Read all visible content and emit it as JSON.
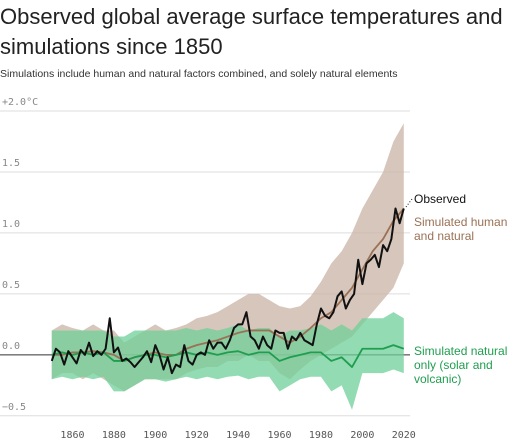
{
  "chart_data": {
    "type": "line",
    "title": "Observed global average surface temperatures and simulations since 1850",
    "subtitle": "Simulations include human and natural factors combined, and solely natural elements",
    "xlim": [
      1825,
      2023
    ],
    "ylim": [
      -0.6,
      2.0
    ],
    "xticks": [
      1860,
      1880,
      1900,
      1920,
      1940,
      1960,
      1980,
      2000,
      2020
    ],
    "yticks": [
      {
        "value": 2.0,
        "label": "+2.0°C"
      },
      1.5,
      {
        "value": 1.0,
        "label": "1.0"
      },
      0.5,
      {
        "value": 0,
        "label": "0.0"
      },
      {
        "value": -0.5,
        "label": "−0.5"
      }
    ],
    "grid": true,
    "series": [
      {
        "name": "Observed",
        "color": "#111111",
        "x": [
          1850,
          1852,
          1854,
          1856,
          1858,
          1860,
          1862,
          1864,
          1866,
          1868,
          1870,
          1872,
          1874,
          1876,
          1878,
          1880,
          1882,
          1884,
          1886,
          1888,
          1890,
          1892,
          1894,
          1896,
          1898,
          1900,
          1902,
          1904,
          1906,
          1908,
          1910,
          1912,
          1914,
          1916,
          1918,
          1920,
          1922,
          1924,
          1926,
          1928,
          1930,
          1932,
          1934,
          1936,
          1938,
          1940,
          1942,
          1944,
          1946,
          1948,
          1950,
          1952,
          1954,
          1956,
          1958,
          1960,
          1962,
          1964,
          1966,
          1968,
          1970,
          1972,
          1974,
          1976,
          1978,
          1980,
          1982,
          1984,
          1986,
          1988,
          1990,
          1992,
          1994,
          1996,
          1998,
          2000,
          2002,
          2004,
          2006,
          2008,
          2010,
          2012,
          2014,
          2016,
          2018,
          2020
        ],
        "values": [
          -0.05,
          0.05,
          0.02,
          -0.08,
          0.03,
          -0.02,
          -0.07,
          0.04,
          0,
          0.1,
          -0.01,
          0.03,
          0,
          0.05,
          0.3,
          0.02,
          0.06,
          -0.05,
          -0.03,
          -0.06,
          -0.1,
          -0.06,
          -0.02,
          0.03,
          -0.06,
          0.08,
          0,
          -0.12,
          -0.02,
          -0.15,
          -0.08,
          -0.1,
          0.08,
          -0.05,
          -0.08,
          0,
          0.02,
          0,
          0.12,
          0.05,
          0.1,
          0.1,
          0.05,
          0.12,
          0.22,
          0.25,
          0.25,
          0.35,
          0.15,
          0.12,
          0.05,
          0.15,
          0.08,
          0.05,
          0.2,
          0.18,
          0.18,
          0.05,
          0.15,
          0.12,
          0.18,
          0.12,
          0.1,
          0.08,
          0.25,
          0.38,
          0.32,
          0.3,
          0.35,
          0.48,
          0.52,
          0.38,
          0.45,
          0.5,
          0.78,
          0.58,
          0.75,
          0.78,
          0.82,
          0.72,
          0.9,
          0.85,
          0.95,
          1.2,
          1.08,
          1.2
        ]
      },
      {
        "name": "Simulated human and natural",
        "color": "#9b7155",
        "band_color": "#c9b3a4",
        "x": [
          1850,
          1855,
          1860,
          1865,
          1870,
          1875,
          1880,
          1885,
          1890,
          1895,
          1900,
          1905,
          1910,
          1915,
          1920,
          1925,
          1930,
          1935,
          1940,
          1945,
          1950,
          1955,
          1960,
          1965,
          1970,
          1975,
          1980,
          1985,
          1990,
          1995,
          2000,
          2005,
          2010,
          2015,
          2020
        ],
        "values": [
          0,
          0,
          0.02,
          0.02,
          0.03,
          0.02,
          0,
          -0.05,
          -0.02,
          0,
          0.02,
          0,
          0,
          0.05,
          0.08,
          0.1,
          0.12,
          0.15,
          0.18,
          0.2,
          0.2,
          0.2,
          0.15,
          0.1,
          0.15,
          0.22,
          0.3,
          0.35,
          0.45,
          0.55,
          0.7,
          0.85,
          0.95,
          1.1,
          1.2
        ],
        "high": [
          0.2,
          0.25,
          0.22,
          0.2,
          0.25,
          0.2,
          0.2,
          0.1,
          0.15,
          0.2,
          0.25,
          0.2,
          0.22,
          0.25,
          0.3,
          0.32,
          0.35,
          0.4,
          0.45,
          0.5,
          0.5,
          0.45,
          0.4,
          0.38,
          0.4,
          0.48,
          0.6,
          0.75,
          0.85,
          1.0,
          1.2,
          1.35,
          1.5,
          1.75,
          1.9
        ],
        "low": [
          -0.2,
          -0.15,
          -0.15,
          -0.2,
          -0.15,
          -0.2,
          -0.25,
          -0.3,
          -0.25,
          -0.2,
          -0.2,
          -0.2,
          -0.2,
          -0.15,
          -0.12,
          -0.1,
          -0.1,
          -0.05,
          -0.05,
          0,
          -0.05,
          -0.05,
          -0.15,
          -0.2,
          -0.12,
          -0.05,
          0,
          0.05,
          0.1,
          0.15,
          0.25,
          0.35,
          0.45,
          0.55,
          0.75
        ]
      },
      {
        "name": "Simulated natural only (solar and volcanic)",
        "color": "#1f9e4f",
        "band_color": "#6fcf98",
        "x": [
          1850,
          1855,
          1860,
          1865,
          1870,
          1875,
          1880,
          1885,
          1890,
          1895,
          1900,
          1905,
          1910,
          1915,
          1920,
          1925,
          1930,
          1935,
          1940,
          1945,
          1950,
          1955,
          1960,
          1965,
          1970,
          1975,
          1980,
          1985,
          1990,
          1995,
          2000,
          2005,
          2010,
          2015,
          2020
        ],
        "values": [
          0,
          0.02,
          0,
          0.02,
          0,
          0.02,
          -0.05,
          -0.05,
          -0.02,
          0,
          0,
          -0.02,
          0,
          0.02,
          0,
          0.02,
          0,
          0.02,
          0.03,
          0,
          0.02,
          0.02,
          -0.05,
          -0.02,
          0,
          0.02,
          0.02,
          -0.05,
          -0.02,
          -0.1,
          0.05,
          0.05,
          0.05,
          0.08,
          0.05
        ],
        "high": [
          0.2,
          0.2,
          0.2,
          0.2,
          0.2,
          0.2,
          0.15,
          0.15,
          0.2,
          0.2,
          0.2,
          0.2,
          0.2,
          0.22,
          0.2,
          0.22,
          0.2,
          0.22,
          0.25,
          0.2,
          0.22,
          0.22,
          0.15,
          0.2,
          0.2,
          0.22,
          0.25,
          0.2,
          0.25,
          0.2,
          0.3,
          0.3,
          0.3,
          0.35,
          0.3
        ],
        "low": [
          -0.2,
          -0.18,
          -0.2,
          -0.18,
          -0.2,
          -0.18,
          -0.3,
          -0.3,
          -0.25,
          -0.2,
          -0.2,
          -0.22,
          -0.2,
          -0.18,
          -0.2,
          -0.18,
          -0.2,
          -0.18,
          -0.17,
          -0.2,
          -0.18,
          -0.18,
          -0.3,
          -0.25,
          -0.2,
          -0.18,
          -0.18,
          -0.3,
          -0.25,
          -0.45,
          -0.15,
          -0.15,
          -0.15,
          -0.12,
          -0.15
        ]
      }
    ]
  }
}
